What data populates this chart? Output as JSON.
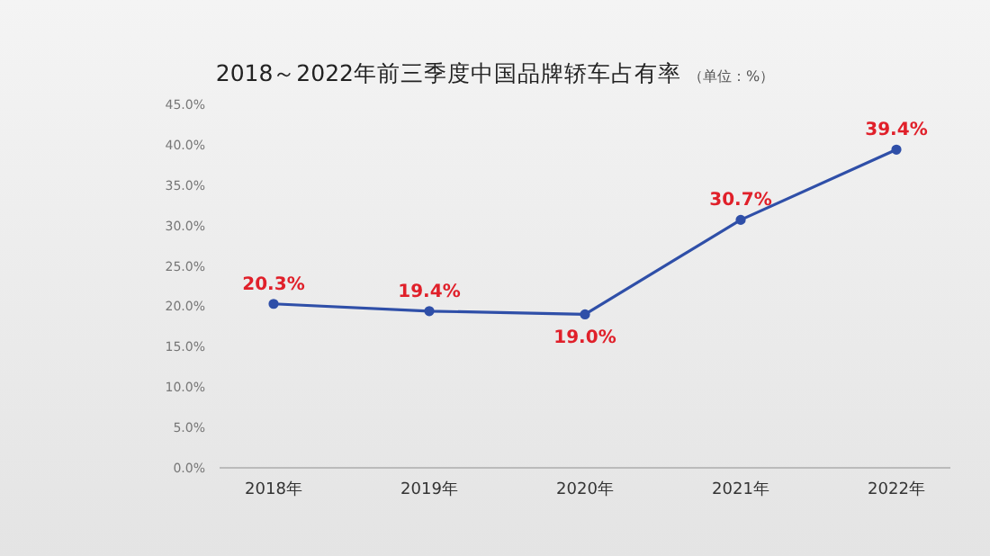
{
  "chart_data": {
    "type": "line",
    "title": "2018～2022年前三季度中国品牌轿车占有率",
    "subtitle": "（单位：%）",
    "categories": [
      "2018年",
      "2019年",
      "2020年",
      "2021年",
      "2022年"
    ],
    "series": [
      {
        "color": "#2f4fa8",
        "values": [
          20.3,
          19.4,
          19.0,
          30.7,
          39.4
        ],
        "value_labels": [
          "20.3%",
          "19.4%",
          "19.0%",
          "30.7%",
          "39.4%"
        ]
      }
    ],
    "ylim": [
      0,
      45
    ],
    "yticks": [
      {
        "value": 0,
        "label": "0.0%"
      },
      {
        "value": 5,
        "label": "5.0%"
      },
      {
        "value": 10,
        "label": "10.0%"
      },
      {
        "value": 15,
        "label": "15.0%"
      },
      {
        "value": 20,
        "label": "20.0%"
      },
      {
        "value": 25,
        "label": "25.0%"
      },
      {
        "value": 30,
        "label": "30.0%"
      },
      {
        "value": 35,
        "label": "35.0%"
      },
      {
        "value": 40,
        "label": "40.0%"
      },
      {
        "value": 45,
        "label": "45.0%"
      }
    ],
    "grid": false,
    "legend": false,
    "marker": "circle",
    "line_style": "solid"
  }
}
